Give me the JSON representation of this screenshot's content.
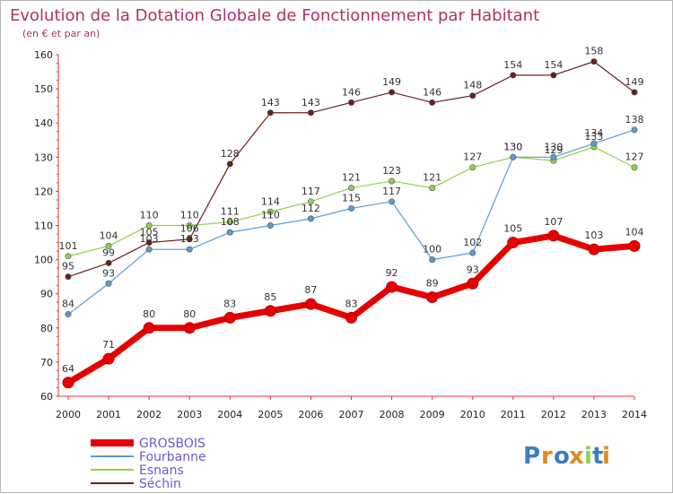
{
  "chart_data": {
    "type": "line",
    "title": "Evolution de la Dotation Globale de Fonctionnement par Habitant",
    "subtitle": "(en € et par an)",
    "x": [
      "2000",
      "2001",
      "2002",
      "2003",
      "2004",
      "2005",
      "2006",
      "2007",
      "2008",
      "2009",
      "2010",
      "2011",
      "2012",
      "2013",
      "2014"
    ],
    "ylim": [
      60,
      160
    ],
    "yticks": [
      60,
      70,
      80,
      90,
      100,
      110,
      120,
      130,
      140,
      150,
      160
    ],
    "grid": false,
    "legend_position": "bottom-left",
    "series": [
      {
        "name": "GROSBOIS",
        "color": "#e60000",
        "values": [
          64,
          71,
          80,
          80,
          83,
          85,
          87,
          83,
          92,
          89,
          93,
          105,
          107,
          103,
          104
        ]
      },
      {
        "name": "Fourbanne",
        "color": "#5a9bd5",
        "values": [
          84,
          93,
          103,
          103,
          108,
          110,
          112,
          115,
          117,
          100,
          102,
          130,
          130,
          134,
          138
        ]
      },
      {
        "name": "Esnans",
        "color": "#8fd14f",
        "values": [
          101,
          104,
          110,
          110,
          111,
          114,
          117,
          121,
          123,
          121,
          127,
          130,
          129,
          133,
          127
        ]
      },
      {
        "name": "Séchin",
        "color": "#6b1e1e",
        "values": [
          95,
          99,
          105,
          106,
          128,
          143,
          143,
          146,
          149,
          146,
          148,
          154,
          154,
          158,
          149
        ]
      }
    ]
  },
  "logo": {
    "letters": [
      "P",
      "r",
      "o",
      "x",
      "i",
      "t",
      "i"
    ],
    "colors": [
      "#3a7fc1",
      "#e08a1e",
      "#3a7fc1",
      "#e08a1e",
      "#8fd14f",
      "#3a7fc1",
      "#e08a1e"
    ]
  }
}
